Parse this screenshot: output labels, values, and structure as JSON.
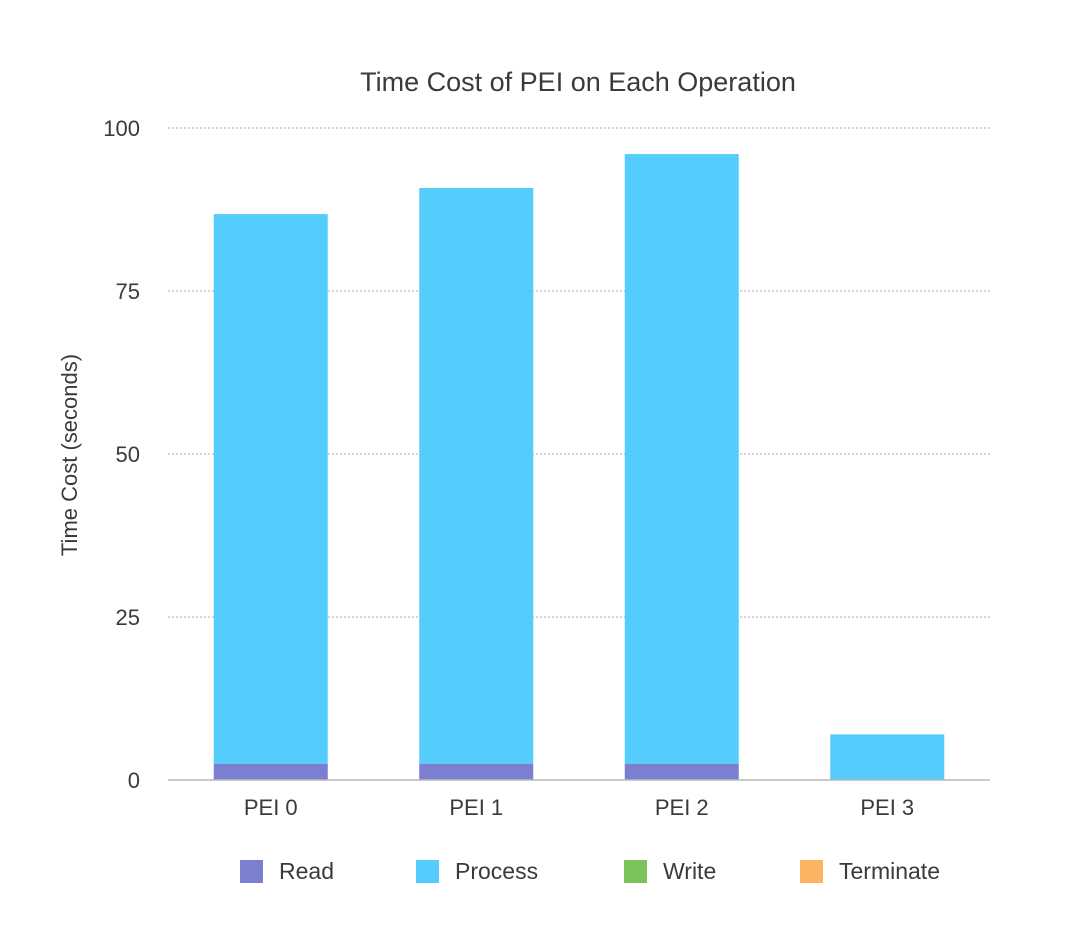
{
  "chart_data": {
    "type": "bar",
    "stacked": true,
    "title": "Time Cost of PEI on Each Operation",
    "xlabel": "",
    "ylabel": "Time Cost (seconds)",
    "categories": [
      "PEI 0",
      "PEI 1",
      "PEI 2",
      "PEI 3"
    ],
    "series": [
      {
        "name": "Read",
        "color": "#7b7fcf",
        "values": [
          2.5,
          2.5,
          2.5,
          0
        ]
      },
      {
        "name": "Process",
        "color": "#55cdfc",
        "values": [
          84.3,
          88.3,
          93.5,
          7
        ]
      },
      {
        "name": "Write",
        "color": "#7cc35b",
        "values": [
          0,
          0,
          0,
          0
        ]
      },
      {
        "name": "Terminate",
        "color": "#fdb462",
        "values": [
          0,
          0,
          0,
          0
        ]
      }
    ],
    "ylim": [
      0,
      100
    ],
    "yticks": [
      0,
      25,
      50,
      75,
      100
    ],
    "grid": true,
    "legend": "bottom"
  }
}
